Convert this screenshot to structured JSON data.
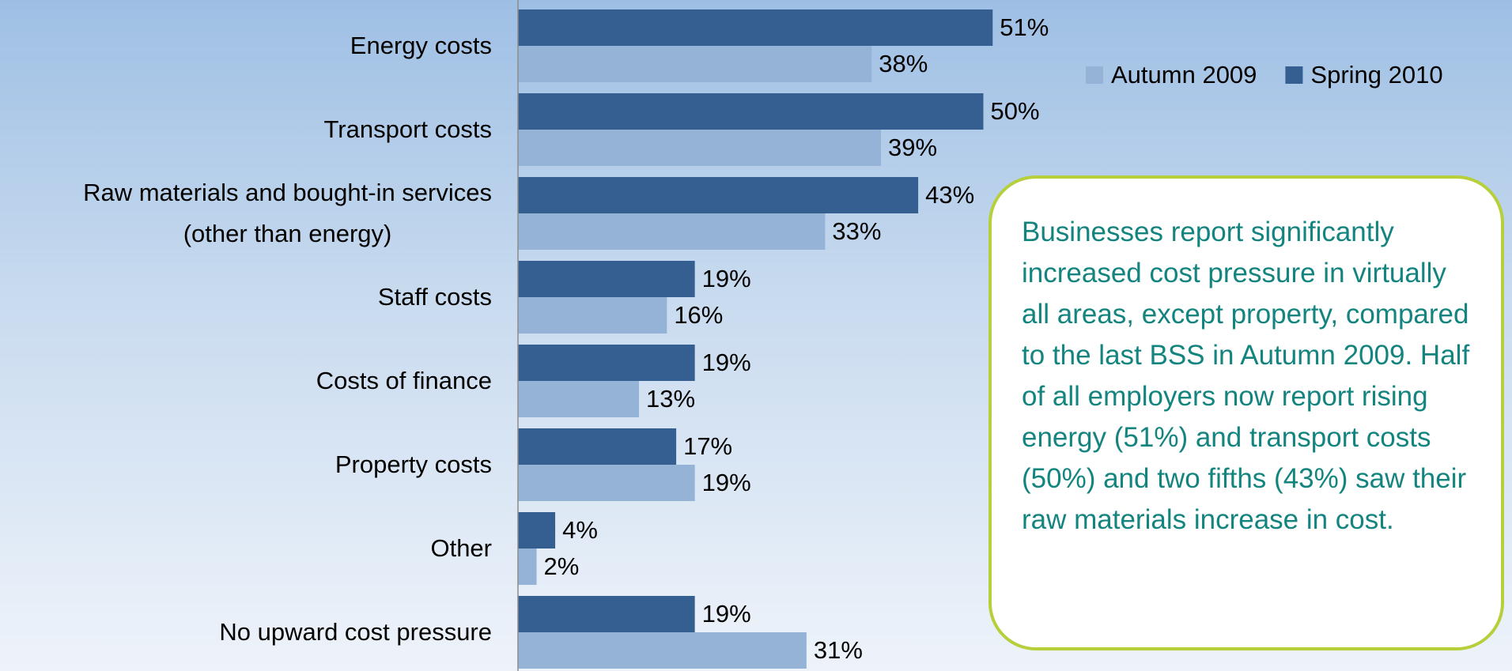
{
  "chart_data": {
    "type": "bar",
    "orientation": "horizontal",
    "categories": [
      "Energy costs",
      "Transport costs",
      "Raw materials and bought-in services\n(other than energy)",
      "Staff costs",
      "Costs of finance",
      "Property costs",
      "Other",
      "No upward cost pressure"
    ],
    "series": [
      {
        "name": "Autumn 2009",
        "color": "#95b3d7",
        "values": [
          38,
          39,
          33,
          16,
          13,
          19,
          2,
          31
        ],
        "value_labels": [
          "38%",
          "39%",
          "33%",
          "16%",
          "13%",
          "19%",
          "2%",
          "31%"
        ]
      },
      {
        "name": "Spring 2010",
        "color": "#365f91",
        "values": [
          51,
          50,
          43,
          19,
          19,
          17,
          4,
          19
        ],
        "value_labels": [
          "51%",
          "50%",
          "43%",
          "19%",
          "19%",
          "17%",
          "4%",
          "19%"
        ]
      }
    ],
    "xlim": [
      0,
      100
    ],
    "legend": "top-right",
    "annotation": "Businesses report significantly increased cost pressure in virtually all areas, except property, compared to the last BSS in Autumn 2009. Half of all employers now report rising energy (51%) and transport costs (50%) and two fifths (43%) saw their raw materials increase in cost."
  }
}
